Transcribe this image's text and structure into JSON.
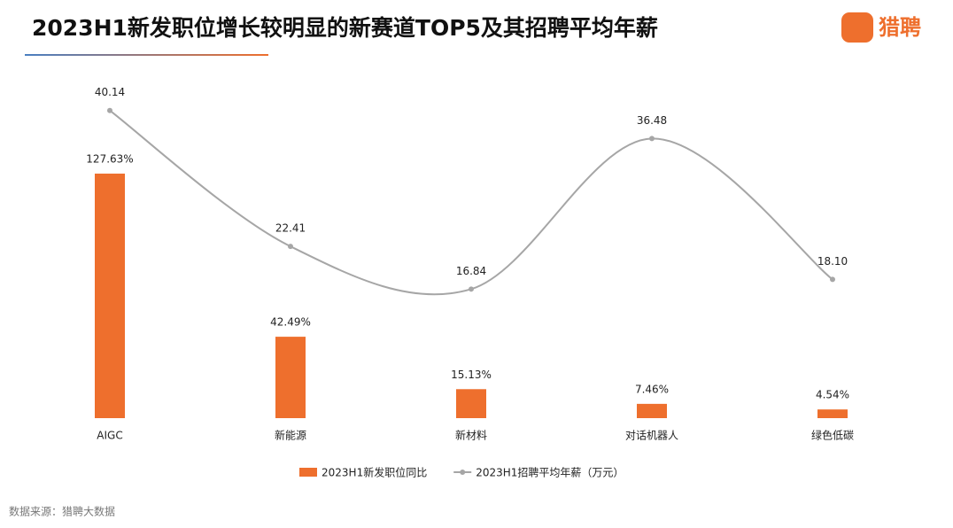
{
  "chart_data": {
    "type": "bar-line",
    "title": "2023H1新发职位增长较明显的新赛道TOP5及其招聘平均年薪",
    "logo": "猎聘",
    "source": "数据来源：猎聘大数据",
    "categories": [
      "AIGC",
      "新能源",
      "新材料",
      "对话机器人",
      "绿色低碳"
    ],
    "series": [
      {
        "name": "2023H1新发职位同比",
        "type": "bar",
        "color": "#ee6f2d",
        "values": [
          127.63,
          42.49,
          15.13,
          7.46,
          4.54
        ],
        "value_labels": [
          "127.63%",
          "42.49%",
          "15.13%",
          "7.46%",
          "4.54%"
        ]
      },
      {
        "name": "2023H1招聘平均年薪（万元）",
        "type": "line",
        "axis": "y2",
        "color": "#a6a6a6",
        "values": [
          40.14,
          22.41,
          16.84,
          36.48,
          18.1
        ],
        "value_labels": [
          "40.14",
          "22.41",
          "16.84",
          "36.48",
          "18.10"
        ]
      }
    ],
    "ylim": [
      0,
      172
    ],
    "y2lim": [
      0,
      43
    ]
  }
}
